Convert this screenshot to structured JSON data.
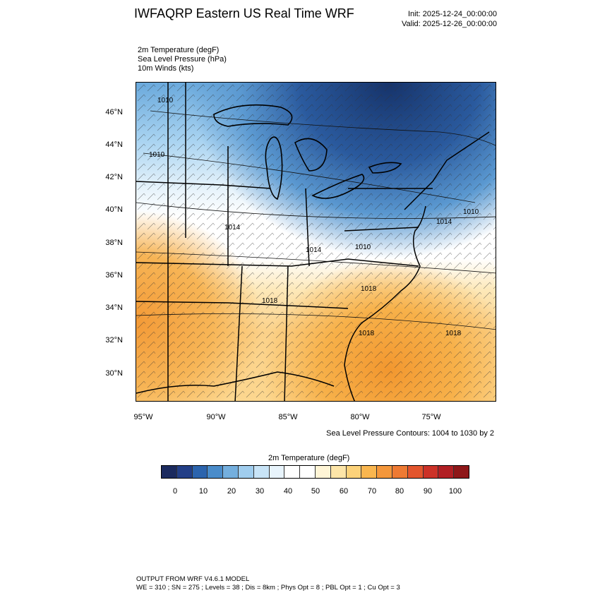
{
  "header": {
    "title": "IWFAQRP Eastern US Real Time WRF",
    "init": "Init: 2025-12-24_00:00:00",
    "valid": "Valid: 2025-12-26_00:00:00"
  },
  "fields": {
    "temp": "2m Temperature   (degF)",
    "slp": "Sea Level Pressure   (hPa)",
    "winds": "10m Winds   (kts)"
  },
  "map": {
    "lat_labels": [
      "46°N",
      "44°N",
      "42°N",
      "40°N",
      "38°N",
      "36°N",
      "34°N",
      "32°N",
      "30°N"
    ],
    "lon_labels": [
      "95°W",
      "90°W",
      "85°W",
      "80°W",
      "75°W"
    ],
    "slp_labels": [
      "1010",
      "1010",
      "1010",
      "1014",
      "1014",
      "1010",
      "1014",
      "1018",
      "1018",
      "1018",
      "1018"
    ],
    "colors": {
      "cold_dark": "#1f3f7a",
      "cold_mid": "#4d8fcc",
      "cold_light": "#a6d2f0",
      "neutral": "#ffffff",
      "warm_light": "#fde6a8",
      "warm_mid": "#f7b14a",
      "warm_dark": "#f39a37"
    }
  },
  "contours_note": "Sea Level Pressure Contours: 1004 to 1030 by 2",
  "colorbar": {
    "title": "2m Temperature  (degF)",
    "labels": [
      "0",
      "10",
      "20",
      "30",
      "40",
      "50",
      "60",
      "70",
      "80",
      "90",
      "100"
    ],
    "colors": [
      "#1b2a5e",
      "#233f87",
      "#2c64ad",
      "#4a8cca",
      "#74afde",
      "#a0cdee",
      "#c8e4f7",
      "#e8f4fc",
      "#ffffff",
      "#ffffff",
      "#fff5d6",
      "#fde5a8",
      "#fcd27a",
      "#f9b64f",
      "#f4973b",
      "#ee7a33",
      "#e3552d",
      "#cc3228",
      "#b11f24",
      "#8e1719"
    ]
  },
  "footer": {
    "line1": "OUTPUT FROM WRF V4.6.1 MODEL",
    "line2": "WE = 310 ; SN = 275 ; Levels = 38 ; Dis = 8km ; Phys Opt = 8 ; PBL Opt = 1 ; Cu Opt = 3"
  }
}
